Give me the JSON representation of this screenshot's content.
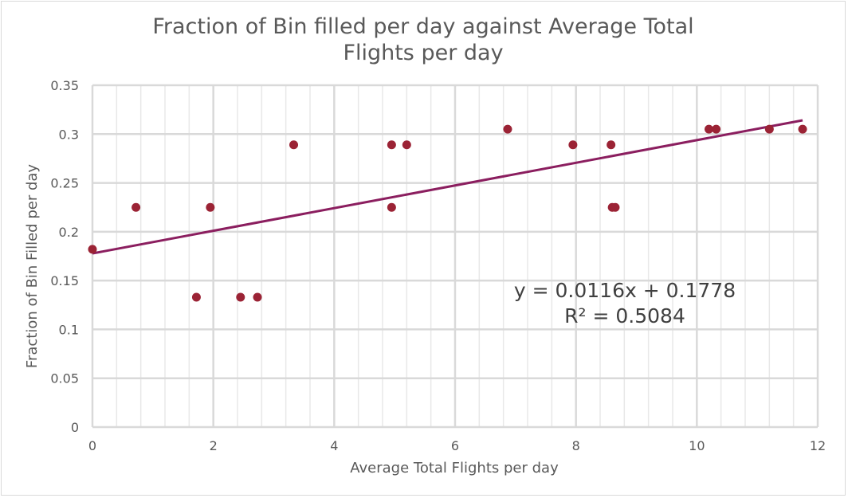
{
  "chart_data": {
    "type": "scatter",
    "title_lines": [
      "Fraction of Bin filled per day against Average Total",
      "Flights per day"
    ],
    "xlabel": "Average Total Flights per day",
    "ylabel": "Fraction of Bin Filled per day",
    "xlim": [
      0,
      12
    ],
    "ylim": [
      0,
      0.35
    ],
    "x_ticks": [
      0,
      2,
      4,
      6,
      8,
      10,
      12
    ],
    "y_ticks": [
      0,
      0.05,
      0.1,
      0.15,
      0.2,
      0.25,
      0.3,
      0.35
    ],
    "x_tick_labels": [
      "0",
      "2",
      "4",
      "6",
      "8",
      "10",
      "12"
    ],
    "y_tick_labels": [
      "0",
      "0.05",
      "0.1",
      "0.15",
      "0.2",
      "0.25",
      "0.3",
      "0.35"
    ],
    "x_minor_step": 0.4,
    "grid": true,
    "legend": "none",
    "series": [
      {
        "marker_color": "#9b2335",
        "points": [
          {
            "x": 0.0,
            "y": 0.182
          },
          {
            "x": 0.72,
            "y": 0.225
          },
          {
            "x": 1.72,
            "y": 0.133
          },
          {
            "x": 1.95,
            "y": 0.225
          },
          {
            "x": 2.45,
            "y": 0.133
          },
          {
            "x": 2.73,
            "y": 0.133
          },
          {
            "x": 3.33,
            "y": 0.289
          },
          {
            "x": 4.95,
            "y": 0.289
          },
          {
            "x": 4.95,
            "y": 0.225
          },
          {
            "x": 5.2,
            "y": 0.289
          },
          {
            "x": 6.87,
            "y": 0.305
          },
          {
            "x": 7.95,
            "y": 0.289
          },
          {
            "x": 8.58,
            "y": 0.289
          },
          {
            "x": 8.6,
            "y": 0.225
          },
          {
            "x": 8.65,
            "y": 0.225
          },
          {
            "x": 10.2,
            "y": 0.305
          },
          {
            "x": 10.32,
            "y": 0.305
          },
          {
            "x": 11.2,
            "y": 0.305
          },
          {
            "x": 11.75,
            "y": 0.305
          }
        ]
      }
    ],
    "trendline": {
      "type": "linear",
      "slope": 0.0116,
      "intercept": 0.1778,
      "x_range": [
        0,
        11.75
      ],
      "color": "#8b1e5f",
      "equation_label": "y = 0.0116x + 0.1778",
      "r2_label": "R² = 0.5084"
    }
  }
}
